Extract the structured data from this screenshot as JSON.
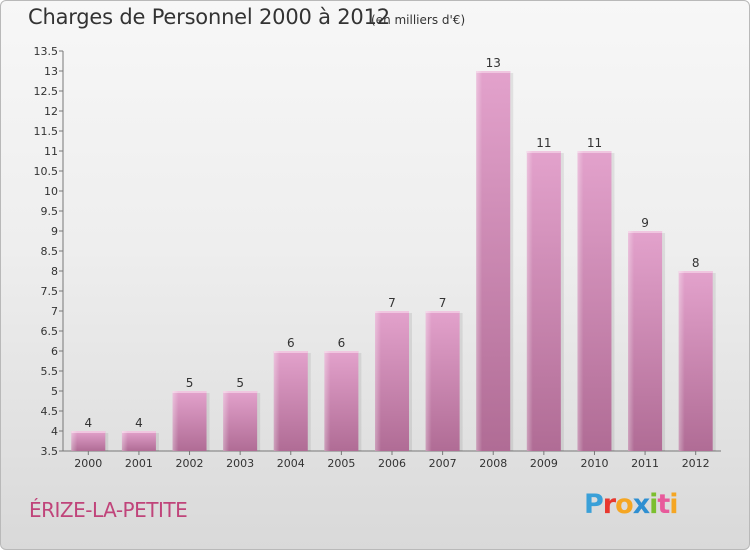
{
  "header": {
    "title": "Charges de Personnel 2000 à 2012",
    "subtitle": "(en milliers d'€)"
  },
  "footer": {
    "place": "ÉRIZE-LA-PETITE",
    "brand": "Proxiti",
    "brand_letters": [
      {
        "char": "P",
        "color": "#3aa0d8"
      },
      {
        "char": "r",
        "color": "#e8382f"
      },
      {
        "char": "o",
        "color": "#f5a623"
      },
      {
        "char": "x",
        "color": "#2f8fd1"
      },
      {
        "char": "i",
        "color": "#7cbf2f"
      },
      {
        "char": "t",
        "color": "#e85a9b"
      },
      {
        "char": "i",
        "color": "#f5a623"
      }
    ]
  },
  "colors": {
    "bar_top": "#e3a2cc",
    "bar_bottom": "#b06c95",
    "bar_highlight": "#f0c6e0",
    "place_text": "#c0447a"
  },
  "chart_data": {
    "type": "bar",
    "categories": [
      "2000",
      "2001",
      "2002",
      "2003",
      "2004",
      "2005",
      "2006",
      "2007",
      "2008",
      "2009",
      "2010",
      "2011",
      "2012"
    ],
    "values": [
      4,
      4,
      5,
      5,
      6,
      6,
      7,
      7,
      13,
      11,
      11,
      9,
      8
    ],
    "data_labels": [
      "4",
      "4",
      "5",
      "5",
      "6",
      "6",
      "7",
      "7",
      "13",
      "11",
      "11",
      "9",
      "8"
    ],
    "yticks": [
      "3.5",
      "4",
      "4.5",
      "5",
      "5.5",
      "6",
      "6.5",
      "7",
      "7.5",
      "8",
      "8.5",
      "9",
      "9.5",
      "10",
      "10.5",
      "11",
      "11.5",
      "12",
      "12.5",
      "13",
      "13.5"
    ],
    "ylim": [
      3.5,
      13.5
    ],
    "grid": false,
    "legend": "none"
  }
}
